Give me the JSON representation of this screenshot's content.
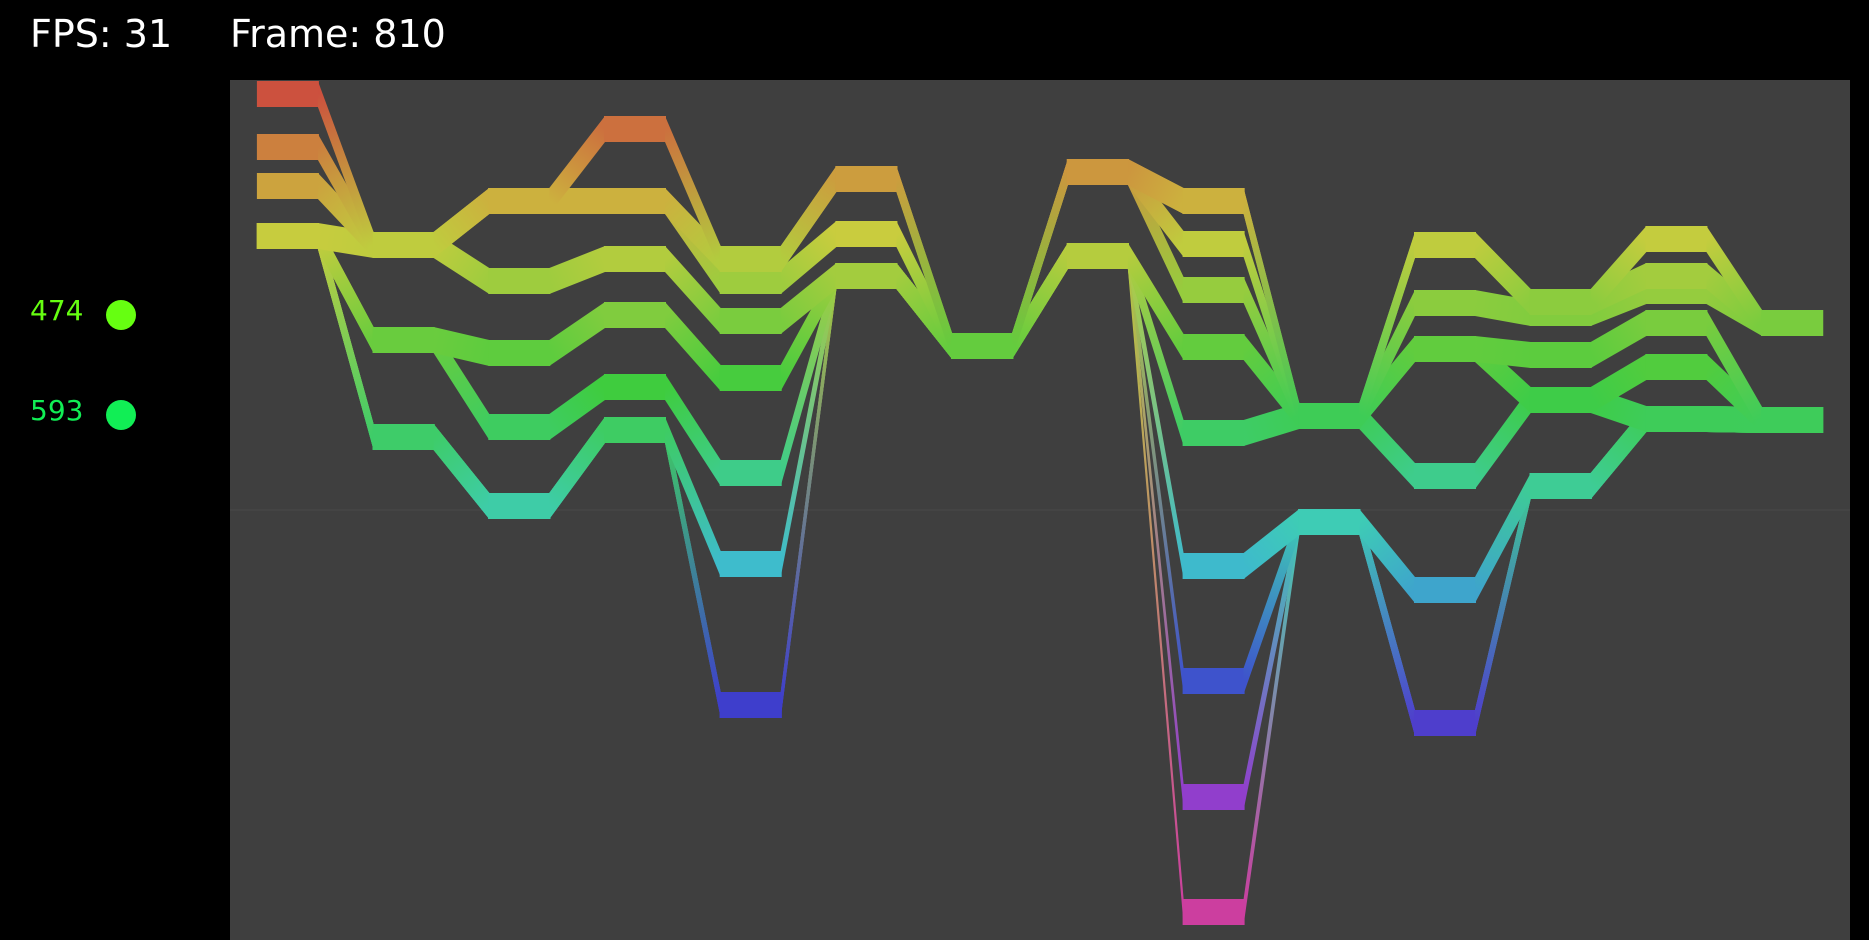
{
  "hud": {
    "fps_label": "FPS:",
    "fps_value": "31",
    "frame_label": "Frame:",
    "frame_value": "810"
  },
  "legend": [
    {
      "value": "474",
      "color": "#66ff11"
    },
    {
      "value": "593",
      "color": "#11ee55"
    }
  ],
  "colors": {
    "background": "#000000",
    "plot_background": "#3f3f3f",
    "hud_text": "#ffffff"
  },
  "chart_data": {
    "type": "line",
    "x": [
      0,
      1,
      2,
      3,
      4,
      5,
      6,
      7,
      8,
      9,
      10,
      11,
      12,
      13
    ],
    "series": [
      {
        "values": [
          0,
          151,
          107,
          35,
          165,
          85,
          252,
          78,
          107,
          322,
          151,
          208,
          145,
          229
        ]
      },
      {
        "values": [
          53,
          151,
          107,
          107,
          165,
          85,
          252,
          78,
          107,
          322,
          151,
          208,
          182,
          229
        ]
      },
      {
        "values": [
          92,
          151,
          107,
          107,
          187,
          140,
          252,
          78,
          150,
          322,
          209,
          219,
          197,
          229
        ]
      },
      {
        "values": [
          142,
          151,
          187,
          165,
          227,
          182,
          252,
          78,
          196,
          322,
          255,
          261,
          229,
          326
        ]
      },
      {
        "values": [
          142,
          246,
          259,
          221,
          284,
          182,
          252,
          162,
          253,
          322,
          255,
          306,
          273,
          326
        ]
      },
      {
        "values": [
          142,
          246,
          333,
          293,
          379,
          182,
          252,
          162,
          339,
          322,
          382,
          306,
          325,
          326
        ]
      },
      {
        "values": [
          142,
          343,
          412,
          336,
          470,
          182,
          252,
          162,
          472,
          428,
          496,
          392,
          325,
          326
        ]
      },
      {
        "values": [
          142,
          343,
          412,
          336,
          611,
          182,
          252,
          162,
          587,
          428,
          629,
          392,
          325,
          326
        ]
      },
      {
        "values": [
          142,
          343,
          412,
          336,
          611,
          182,
          252,
          162,
          703,
          428,
          629,
          392,
          325,
          326
        ]
      },
      {
        "values": [
          142,
          343,
          412,
          336,
          611,
          182,
          252,
          162,
          818,
          428,
          629,
          392,
          325,
          326
        ]
      }
    ]
  }
}
